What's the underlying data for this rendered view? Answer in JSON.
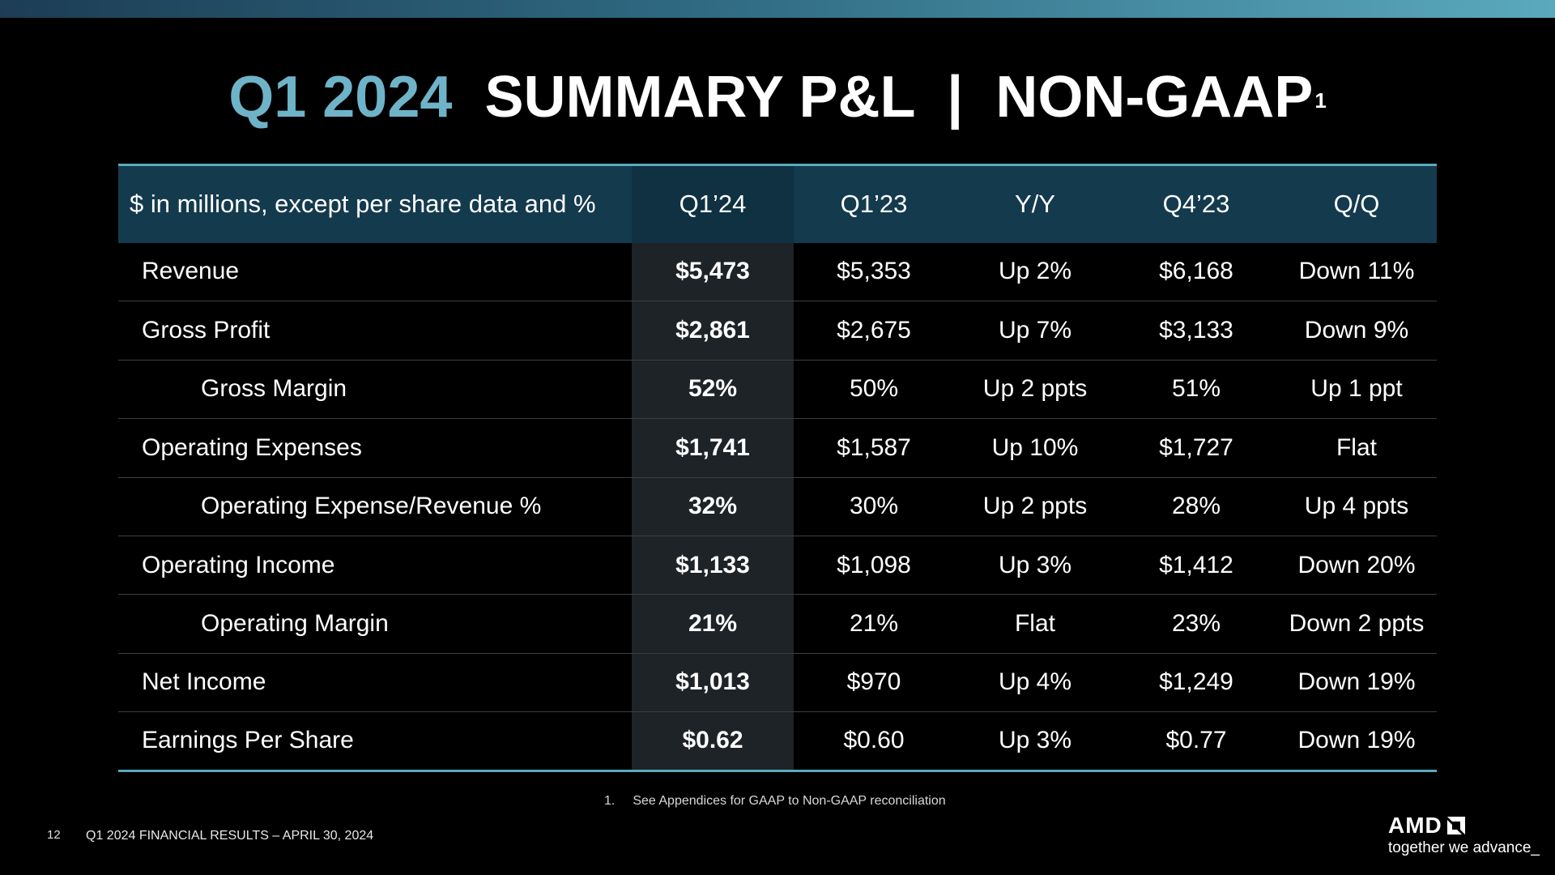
{
  "slide": {
    "title_accent": "Q1 2024",
    "title_main": "SUMMARY P&L  |  NON-GAAP",
    "title_superscript": "1"
  },
  "table": {
    "headers": [
      "$ in millions, except per share data and %",
      "Q1’24",
      "Q1’23",
      "Y/Y",
      "Q4’23",
      "Q/Q"
    ],
    "rows": [
      {
        "label": "Revenue",
        "indent": false,
        "q1_24": "$5,473",
        "q1_23": "$5,353",
        "yy": "Up 2%",
        "q4_23": "$6,168",
        "qq": "Down 11%"
      },
      {
        "label": "Gross Profit",
        "indent": false,
        "q1_24": "$2,861",
        "q1_23": "$2,675",
        "yy": "Up 7%",
        "q4_23": "$3,133",
        "qq": "Down 9%"
      },
      {
        "label": "Gross Margin",
        "indent": true,
        "q1_24": "52%",
        "q1_23": "50%",
        "yy": "Up 2 ppts",
        "q4_23": "51%",
        "qq": "Up 1 ppt"
      },
      {
        "label": "Operating Expenses",
        "indent": false,
        "q1_24": "$1,741",
        "q1_23": "$1,587",
        "yy": "Up 10%",
        "q4_23": "$1,727",
        "qq": "Flat"
      },
      {
        "label": "Operating Expense/Revenue %",
        "indent": true,
        "q1_24": "32%",
        "q1_23": "30%",
        "yy": "Up 2 ppts",
        "q4_23": "28%",
        "qq": "Up 4 ppts"
      },
      {
        "label": "Operating Income",
        "indent": false,
        "q1_24": "$1,133",
        "q1_23": "$1,098",
        "yy": "Up 3%",
        "q4_23": "$1,412",
        "qq": "Down 20%"
      },
      {
        "label": "Operating Margin",
        "indent": true,
        "q1_24": "21%",
        "q1_23": "21%",
        "yy": "Flat",
        "q4_23": "23%",
        "qq": "Down 2 ppts"
      },
      {
        "label": "Net Income",
        "indent": false,
        "q1_24": "$1,013",
        "q1_23": "$970",
        "yy": "Up 4%",
        "q4_23": "$1,249",
        "qq": "Down 19%"
      },
      {
        "label": "Earnings Per Share",
        "indent": false,
        "q1_24": "$0.62",
        "q1_23": "$0.60",
        "yy": "Up 3%",
        "q4_23": "$0.77",
        "qq": "Down 19%"
      }
    ]
  },
  "footnote": {
    "number": "1.",
    "text": "See Appendices for GAAP to Non-GAAP reconciliation"
  },
  "footer": {
    "page_number": "12",
    "text": "Q1 2024 FINANCIAL RESULTS – APRIL 30, 2024"
  },
  "brand": {
    "logo_text": "AMD",
    "logo_icon": "amd-arrow-icon",
    "tagline": "together we advance_"
  },
  "colors": {
    "accent": "#6fb3c8",
    "header_bg": "#143a4d",
    "highlight_column": "#1e2327",
    "rule": "#5aa9bd",
    "background": "#000000"
  }
}
